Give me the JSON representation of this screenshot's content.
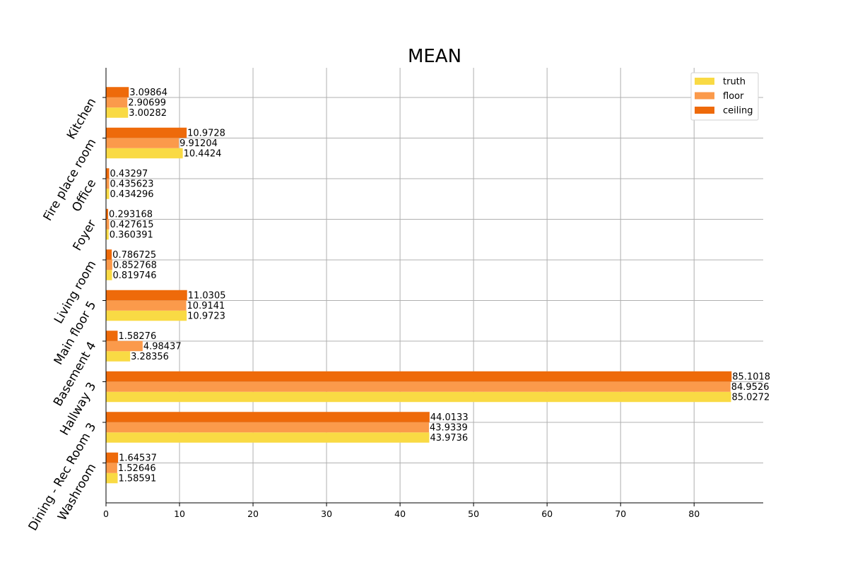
{
  "chart_data": {
    "type": "bar",
    "orientation": "horizontal",
    "title": "MEAN",
    "xlabel": "",
    "ylabel": "",
    "xlim": [
      0,
      89.4
    ],
    "xticks": [
      0,
      10,
      20,
      30,
      40,
      50,
      60,
      70,
      80
    ],
    "grid": true,
    "legend_position": "top-right",
    "categories": [
      "Kitchen",
      "Fire place room",
      "Office",
      "Foyer",
      "Living room",
      "Main floor 5",
      "Basement 4",
      "Hallway 3",
      "Dining - Rec Room 3",
      "Washroom"
    ],
    "category_labels": [
      [
        "Kitchen"
      ],
      [
        "Fire place room"
      ],
      [
        "Office"
      ],
      [
        "Foyer"
      ],
      [
        "Living room"
      ],
      [
        "Main floor 5"
      ],
      [
        "Basement 4"
      ],
      [
        "Hallway 3"
      ],
      [
        "Dining - Rec Room 3"
      ],
      [
        "Washroom"
      ]
    ],
    "series": [
      {
        "name": "truth",
        "color": "#f9da44",
        "values": [
          3.00282,
          10.4424,
          0.434296,
          0.360391,
          0.819746,
          10.9723,
          3.28356,
          85.0272,
          43.9736,
          1.58591
        ],
        "labels": [
          "3.00282",
          "10.4424",
          "0.434296",
          "0.360391",
          "0.819746",
          "10.9723",
          "3.28356",
          "85.0272",
          "43.9736",
          "1.58591"
        ]
      },
      {
        "name": "floor",
        "color": "#fb9a4b",
        "values": [
          2.90699,
          9.91204,
          0.435623,
          0.427615,
          0.852768,
          10.9141,
          4.98437,
          84.9526,
          43.9339,
          1.52646
        ],
        "labels": [
          "2.90699",
          "9.91204",
          "0.435623",
          "0.427615",
          "0.852768",
          "10.9141",
          "4.98437",
          "84.9526",
          "43.9339",
          "1.52646"
        ]
      },
      {
        "name": "ceiling",
        "color": "#ee6a0a",
        "values": [
          3.09864,
          10.9728,
          0.43297,
          0.293168,
          0.786725,
          11.0305,
          1.58276,
          85.1018,
          44.0133,
          1.64537
        ],
        "labels": [
          "3.09864",
          "10.9728",
          "0.43297",
          "0.293168",
          "0.786725",
          "11.0305",
          "1.58276",
          "85.1018",
          "44.0133",
          "1.64537"
        ]
      }
    ]
  }
}
